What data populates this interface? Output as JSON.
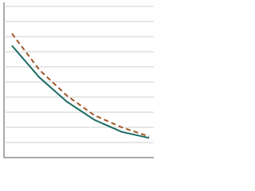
{
  "chart_data": {
    "type": "line",
    "x": [
      0,
      1,
      2,
      3,
      4,
      5
    ],
    "xlim": [
      -0.29,
      5.17
    ],
    "ylim": [
      0,
      10
    ],
    "yticks": [
      1,
      2,
      3,
      4,
      5,
      6,
      7,
      8,
      9,
      10
    ],
    "grid": true,
    "series": [
      {
        "color": "#1a6b63",
        "line_style": "solid",
        "values": [
          7.4,
          5.3,
          3.7,
          2.5,
          1.7,
          1.3
        ]
      },
      {
        "color": "#a0572a",
        "line_style": "dashed",
        "values": [
          8.2,
          5.8,
          4.1,
          2.8,
          2.0,
          1.4
        ]
      }
    ]
  }
}
